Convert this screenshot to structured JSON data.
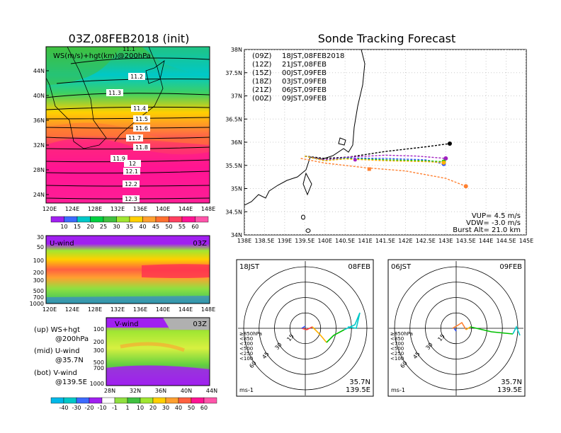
{
  "colors": {
    "c1": "#a020f0",
    "c2": "#3d6bff",
    "c3": "#00c8c8",
    "c4": "#00d040",
    "c5": "#a0e632",
    "c6": "#ffd000",
    "c7": "#ff9020",
    "c8": "#ff4040",
    "c9": "#ff1493",
    "c10": "#ff55aa",
    "fg": "#000000"
  },
  "icons": {
    "map": "coastline-map",
    "polar": "polar-hodograph"
  },
  "left": {
    "title": "03Z,08FEB2018 (init)",
    "top_label": "WS(m/s)+hgt(km)@200hPa",
    "top_partial": "11.1",
    "lat_ticks": [
      "44N",
      "40N",
      "36N",
      "32N",
      "28N",
      "24N"
    ],
    "lon_ticks": [
      "120E",
      "124E",
      "128E",
      "132E",
      "136E",
      "140E",
      "144E",
      "148E"
    ],
    "contours": [
      "11.2",
      "11.3",
      "11.4",
      "11.5",
      "11.6",
      "11.7",
      "11.8",
      "11.9",
      "12",
      "12.1",
      "12.2",
      "12.3"
    ],
    "ws_scale": [
      "10",
      "15",
      "20",
      "25",
      "30",
      "35",
      "40",
      "45",
      "50",
      "55",
      "60"
    ],
    "uwind_label": "U-wind",
    "uwind_time": "03Z",
    "p_ticks": [
      "30",
      "50",
      "100",
      "200",
      "300",
      "500",
      "700",
      "1000"
    ],
    "vwind_label": "V-wind",
    "vwind_time": "03Z",
    "vwind_lat_ticks": [
      "28N",
      "32N",
      "36N",
      "40N",
      "44N"
    ],
    "v_scale": [
      "-40",
      "-30",
      "-20",
      "-10",
      "-1",
      "1",
      "10",
      "20",
      "30",
      "40",
      "50",
      "60"
    ],
    "notes": [
      "(up) WS+hgt",
      "@200hPa",
      "(mid) U-wind",
      "@35.7N",
      "(bot) V-wind",
      "@139.5E"
    ]
  },
  "right": {
    "title": "Sonde Tracking Forecast",
    "legend": [
      {
        "code": "(09Z)",
        "time": "18JST,08FEB2018",
        "color": "#000000"
      },
      {
        "code": "(12Z)",
        "time": "21JST,08FEB",
        "color": "#a020c0"
      },
      {
        "code": "(15Z)",
        "time": "00JST,09FEB",
        "color": "#3050ff"
      },
      {
        "code": "(18Z)",
        "time": "03JST,09FEB",
        "color": "#00c000"
      },
      {
        "code": "(21Z)",
        "time": "06JST,09FEB",
        "color": "#ffb000"
      },
      {
        "code": "(00Z)",
        "time": "09JST,09FEB",
        "color": "#ff8030"
      }
    ],
    "lat_ticks": [
      "38N",
      "37.5N",
      "37N",
      "36.5N",
      "36N",
      "35.5N",
      "35N",
      "34.5N",
      "34N"
    ],
    "lon_ticks": [
      "138E",
      "138.5E",
      "139E",
      "139.5E",
      "140E",
      "140.5E",
      "141E",
      "141.5E",
      "142E",
      "142.5E",
      "143E",
      "143.5E",
      "144E",
      "144.5E",
      "145E"
    ],
    "vup": "VUP=  4.5 m/s",
    "vdw": "VDW= -3.0 m/s",
    "burst": "Burst Alt= 21.0 km"
  },
  "polar1": {
    "left": "18JST",
    "right": "08FEB",
    "loc1": "35.7N",
    "loc2": "139.5E",
    "units": "ms-1",
    "rings": [
      "15",
      "30",
      "45",
      "60"
    ],
    "levels": [
      "≥850hPa",
      "<850",
      "<700",
      "<500",
      "<250",
      "<100"
    ]
  },
  "polar2": {
    "left": "06JST",
    "right": "09FEB",
    "loc1": "35.7N",
    "loc2": "139.5E",
    "units": "ms-1",
    "rings": [
      "15",
      "30",
      "45",
      "60"
    ],
    "levels": [
      "≥850hPa",
      "<850",
      "<700",
      "<500",
      "<250",
      "<100"
    ]
  },
  "chart_data": [
    {
      "type": "heatmap",
      "title": "03Z,08FEB2018 (init)",
      "label": "WS(m/s)+hgt(km)@200hPa",
      "xlabel": "",
      "ylabel": "",
      "x_range": [
        120,
        149
      ],
      "y_range": [
        22,
        47
      ],
      "contour_levels_km": [
        11.1,
        11.2,
        11.3,
        11.4,
        11.5,
        11.6,
        11.7,
        11.8,
        11.9,
        12,
        12.1,
        12.2,
        12.3
      ],
      "colorbar": [
        10,
        15,
        20,
        25,
        30,
        35,
        40,
        45,
        50,
        55,
        60
      ]
    },
    {
      "type": "heatmap",
      "label": "U-wind",
      "time": "03Z",
      "x_range": [
        120,
        149
      ],
      "y_ticks": [
        30,
        50,
        100,
        200,
        300,
        500,
        700,
        1000
      ]
    },
    {
      "type": "heatmap",
      "label": "V-wind",
      "time": "03Z",
      "x_range": [
        28,
        44
      ],
      "colorbar": [
        -40,
        -30,
        -20,
        -10,
        -1,
        1,
        10,
        20,
        30,
        40,
        50,
        60
      ]
    },
    {
      "type": "line",
      "title": "Sonde Tracking Forecast",
      "xlim": [
        138,
        145
      ],
      "ylim": [
        34,
        38
      ],
      "series": [
        {
          "name": "(09Z) 18JST,08FEB2018",
          "x": [
            139.5,
            140,
            140.6,
            141.5,
            142.5,
            143.1
          ],
          "y": [
            35.7,
            35.65,
            35.68,
            35.8,
            35.9,
            35.97
          ]
        },
        {
          "name": "(12Z) 21JST,08FEB",
          "x": [
            139.5,
            140,
            140.6,
            141.5,
            142.3,
            143
          ],
          "y": [
            35.7,
            35.62,
            35.68,
            35.72,
            35.7,
            35.65
          ]
        },
        {
          "name": "(15Z) 00JST,09FEB",
          "x": [
            139.5,
            140,
            140.5,
            141.5,
            142.5,
            142.95
          ],
          "y": [
            35.7,
            35.6,
            35.66,
            35.65,
            35.62,
            35.53
          ]
        },
        {
          "name": "(18Z) 03JST,09FEB",
          "x": [
            139.5,
            140,
            140.5,
            141.5,
            142.5,
            142.95
          ],
          "y": [
            35.7,
            35.6,
            35.65,
            35.62,
            35.6,
            35.58
          ]
        },
        {
          "name": "(21Z) 06JST,09FEB",
          "x": [
            139.5,
            140,
            140.5,
            141.5,
            142.5,
            142.95
          ],
          "y": [
            35.7,
            35.6,
            35.64,
            35.6,
            35.58,
            35.56
          ]
        },
        {
          "name": "(00Z) 09JST,09FEB",
          "x": [
            139.4,
            140,
            141,
            142,
            143,
            143.5
          ],
          "y": [
            35.65,
            35.55,
            35.45,
            35.38,
            35.22,
            35.05
          ]
        }
      ],
      "annotations": [
        "VUP=  4.5 m/s",
        "VDW= -3.0 m/s",
        "Burst Alt= 21.0 km"
      ]
    }
  ]
}
